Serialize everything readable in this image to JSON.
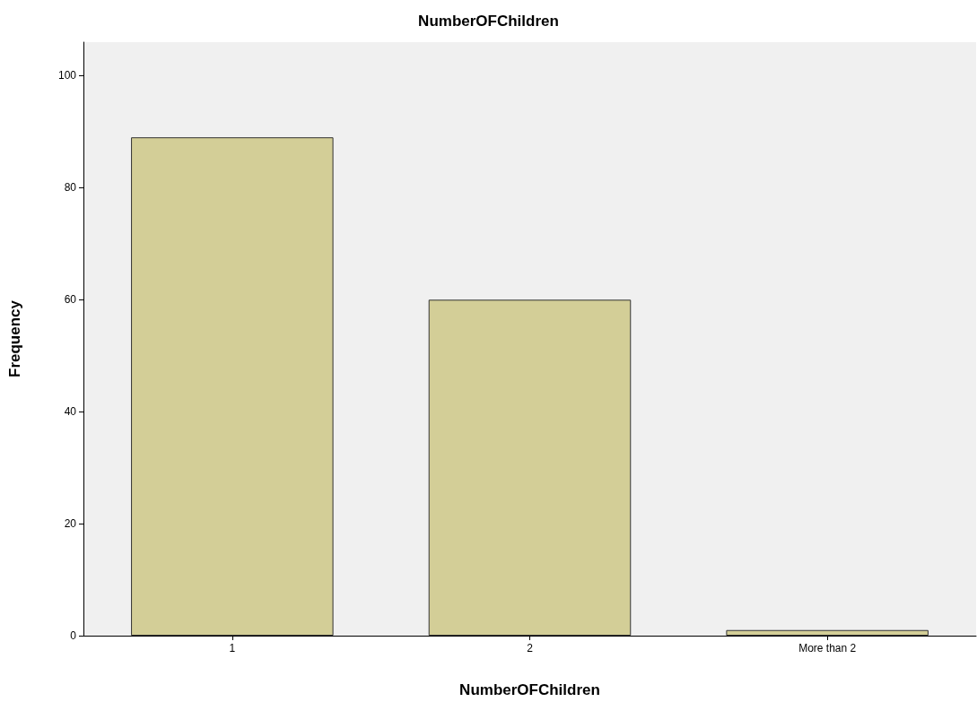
{
  "chart_data": {
    "type": "bar",
    "title": "NumberOFChildren",
    "xlabel": "NumberOFChildren",
    "ylabel": "Frequency",
    "categories": [
      "1",
      "2",
      "More than 2"
    ],
    "values": [
      89,
      60,
      1
    ],
    "color": "#d3ce97",
    "ylim": [
      0,
      106
    ],
    "yticks": [
      0,
      20,
      40,
      60,
      80,
      100
    ]
  }
}
